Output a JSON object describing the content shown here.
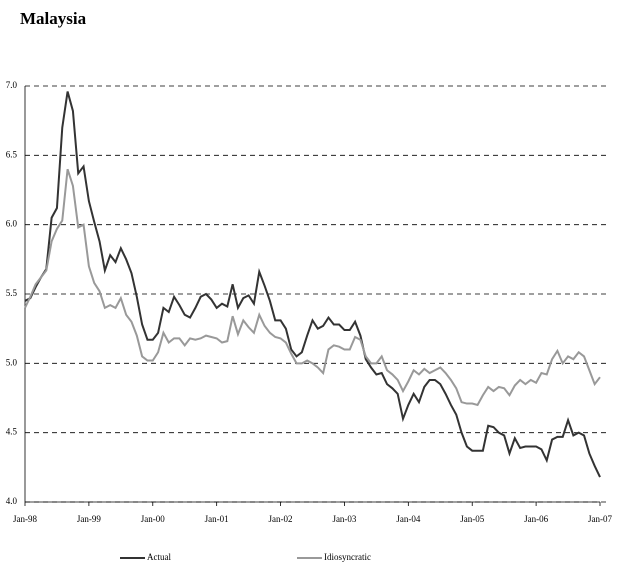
{
  "chart_data": {
    "type": "line",
    "title": "Malaysia",
    "x": [
      "1998-01",
      "1998-02",
      "1998-03",
      "1998-04",
      "1998-05",
      "1998-06",
      "1998-07",
      "1998-08",
      "1998-09",
      "1998-10",
      "1998-11",
      "1998-12",
      "1999-01",
      "1999-02",
      "1999-03",
      "1999-04",
      "1999-05",
      "1999-06",
      "1999-07",
      "1999-08",
      "1999-09",
      "1999-10",
      "1999-11",
      "1999-12",
      "2000-01",
      "2000-02",
      "2000-03",
      "2000-04",
      "2000-05",
      "2000-06",
      "2000-07",
      "2000-08",
      "2000-09",
      "2000-10",
      "2000-11",
      "2000-12",
      "2001-01",
      "2001-02",
      "2001-03",
      "2001-04",
      "2001-05",
      "2001-06",
      "2001-07",
      "2001-08",
      "2001-09",
      "2001-10",
      "2001-11",
      "2001-12",
      "2002-01",
      "2002-02",
      "2002-03",
      "2002-04",
      "2002-05",
      "2002-06",
      "2002-07",
      "2002-08",
      "2002-09",
      "2002-10",
      "2002-11",
      "2002-12",
      "2003-01",
      "2003-02",
      "2003-03",
      "2003-04",
      "2003-05",
      "2003-06",
      "2003-07",
      "2003-08",
      "2003-09",
      "2003-10",
      "2003-11",
      "2003-12",
      "2004-01",
      "2004-02",
      "2004-03",
      "2004-04",
      "2004-05",
      "2004-06",
      "2004-07",
      "2004-08",
      "2004-09",
      "2004-10",
      "2004-11",
      "2004-12",
      "2005-01",
      "2005-02",
      "2005-03",
      "2005-04",
      "2005-05",
      "2005-06",
      "2005-07",
      "2005-08",
      "2005-09",
      "2005-10",
      "2005-11",
      "2005-12",
      "2006-01",
      "2006-02",
      "2006-03",
      "2006-04",
      "2006-05",
      "2006-06",
      "2006-07",
      "2006-08",
      "2006-09",
      "2006-10",
      "2006-11",
      "2006-12",
      "2007-01"
    ],
    "series": [
      {
        "name": "Actual",
        "color": "#333333",
        "values": [
          5.45,
          5.47,
          5.55,
          5.62,
          5.68,
          6.05,
          6.12,
          6.7,
          6.96,
          6.82,
          6.37,
          6.42,
          6.17,
          6.02,
          5.88,
          5.67,
          5.78,
          5.73,
          5.83,
          5.75,
          5.65,
          5.48,
          5.28,
          5.17,
          5.17,
          5.22,
          5.4,
          5.37,
          5.48,
          5.42,
          5.35,
          5.33,
          5.4,
          5.48,
          5.5,
          5.46,
          5.4,
          5.43,
          5.41,
          5.57,
          5.4,
          5.47,
          5.49,
          5.43,
          5.66,
          5.56,
          5.45,
          5.31,
          5.31,
          5.25,
          5.1,
          5.05,
          5.08,
          5.2,
          5.31,
          5.25,
          5.27,
          5.33,
          5.28,
          5.28,
          5.24,
          5.24,
          5.3,
          5.2,
          5.03,
          4.97,
          4.92,
          4.93,
          4.85,
          4.82,
          4.78,
          4.6,
          4.7,
          4.78,
          4.72,
          4.83,
          4.88,
          4.88,
          4.85,
          4.78,
          4.7,
          4.63,
          4.5,
          4.4,
          4.37,
          4.37,
          4.37,
          4.55,
          4.54,
          4.5,
          4.48,
          4.35,
          4.46,
          4.39,
          4.4,
          4.4,
          4.4,
          4.38,
          4.3,
          4.45,
          4.47,
          4.47,
          4.59,
          4.48,
          4.5,
          4.48,
          4.35,
          4.26,
          4.18
        ]
      },
      {
        "name": "Idiosyncratic",
        "color": "#999999",
        "values": [
          5.4,
          5.48,
          5.57,
          5.62,
          5.67,
          5.88,
          5.97,
          6.03,
          6.4,
          6.28,
          5.98,
          6.0,
          5.7,
          5.58,
          5.52,
          5.4,
          5.42,
          5.4,
          5.47,
          5.35,
          5.3,
          5.2,
          5.05,
          5.02,
          5.02,
          5.08,
          5.22,
          5.15,
          5.18,
          5.18,
          5.13,
          5.18,
          5.17,
          5.18,
          5.2,
          5.19,
          5.18,
          5.15,
          5.16,
          5.34,
          5.21,
          5.31,
          5.26,
          5.22,
          5.35,
          5.27,
          5.22,
          5.19,
          5.18,
          5.15,
          5.07,
          5.0,
          5.0,
          5.02,
          5.0,
          4.97,
          4.93,
          5.1,
          5.13,
          5.12,
          5.1,
          5.1,
          5.19,
          5.17,
          5.05,
          5.0,
          5.0,
          5.05,
          4.95,
          4.92,
          4.88,
          4.8,
          4.87,
          4.95,
          4.92,
          4.96,
          4.93,
          4.95,
          4.97,
          4.93,
          4.88,
          4.82,
          4.72,
          4.71,
          4.71,
          4.7,
          4.77,
          4.83,
          4.8,
          4.83,
          4.82,
          4.77,
          4.84,
          4.88,
          4.85,
          4.88,
          4.86,
          4.93,
          4.92,
          5.03,
          5.09,
          5.0,
          5.05,
          5.03,
          5.08,
          5.05,
          4.95,
          4.85,
          4.9
        ]
      }
    ],
    "xlim": [
      "1998-01",
      "2007-01"
    ],
    "xticks": [
      {
        "value": "1998-01",
        "label": "Jan-98"
      },
      {
        "value": "1999-01",
        "label": "Jan-99"
      },
      {
        "value": "2000-01",
        "label": "Jan-00"
      },
      {
        "value": "2001-01",
        "label": "Jan-01"
      },
      {
        "value": "2002-01",
        "label": "Jan-02"
      },
      {
        "value": "2003-01",
        "label": "Jan-03"
      },
      {
        "value": "2004-01",
        "label": "Jan-04"
      },
      {
        "value": "2005-01",
        "label": "Jan-05"
      },
      {
        "value": "2006-01",
        "label": "Jan-06"
      },
      {
        "value": "2007-01",
        "label": "Jan-07"
      }
    ],
    "ylim": [
      4,
      7
    ],
    "yticks": [
      {
        "value": 4,
        "label": "4.0"
      },
      {
        "value": 4.5,
        "label": "4.5"
      },
      {
        "value": 5,
        "label": "5.0"
      },
      {
        "value": 5.5,
        "label": "5.5"
      },
      {
        "value": 6,
        "label": "6.0"
      },
      {
        "value": 6.5,
        "label": "6.5"
      },
      {
        "value": 7,
        "label": "7.0"
      }
    ],
    "grid": true
  }
}
